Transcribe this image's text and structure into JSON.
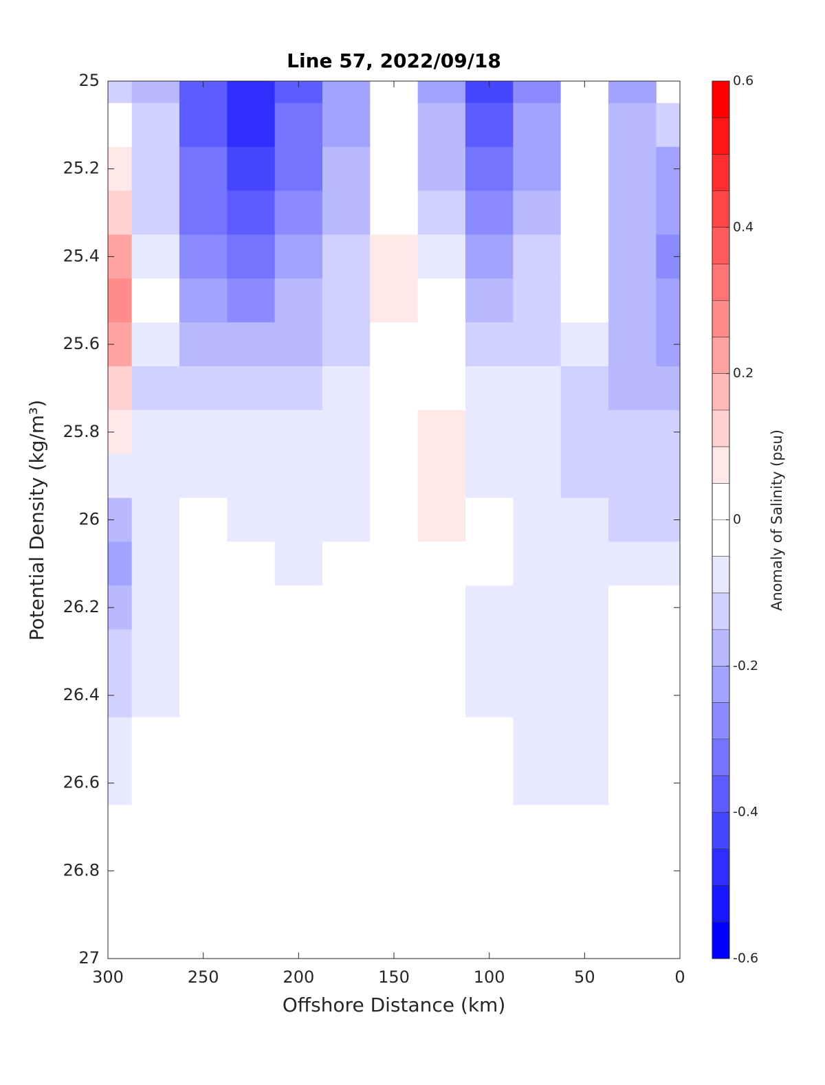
{
  "chart_data": {
    "type": "contour",
    "title": "Line 57, 2022/09/18",
    "xlabel": "Offshore Distance (km)",
    "ylabel": "Potential Density (kg/m³)",
    "colorbar_label": "Anomaly of Salinity (psu)",
    "xlim": [
      300,
      0
    ],
    "xticks": [
      300,
      250,
      200,
      150,
      100,
      50,
      0
    ],
    "ylim": [
      25,
      27
    ],
    "yticks": [
      25,
      25.2,
      25.4,
      25.6,
      25.8,
      26,
      26.2,
      26.4,
      26.6,
      26.8,
      27
    ],
    "clim": [
      -0.6,
      0.6
    ],
    "cticks": [
      -0.6,
      -0.4,
      -0.2,
      0,
      0.2,
      0.4,
      0.6
    ],
    "level_step": 0.05,
    "colors": {
      "low": "#0000ff",
      "mid": "#ffffff",
      "high": "#ff0000"
    },
    "x": [
      300,
      275,
      250,
      225,
      200,
      175,
      150,
      125,
      100,
      75,
      50,
      25,
      0
    ],
    "y": [
      25,
      25.1,
      25.2,
      25.3,
      25.4,
      25.5,
      25.6,
      25.7,
      25.8,
      25.9,
      26,
      26.1,
      26.2,
      26.3,
      26.4,
      26.5,
      26.6,
      26.7,
      26.8,
      26.9,
      27
    ],
    "z": [
      [
        -0.13,
        -0.18,
        -0.38,
        -0.48,
        -0.38,
        -0.23,
        0,
        -0.23,
        -0.43,
        -0.28,
        0,
        -0.23,
        null
      ],
      [
        0,
        -0.13,
        -0.38,
        -0.48,
        -0.33,
        -0.23,
        0,
        -0.18,
        -0.38,
        -0.23,
        0,
        -0.18,
        -0.13
      ],
      [
        0.08,
        -0.13,
        -0.33,
        -0.43,
        -0.33,
        -0.18,
        0,
        -0.18,
        -0.33,
        -0.23,
        0,
        -0.18,
        -0.23
      ],
      [
        0.13,
        -0.13,
        -0.33,
        -0.38,
        -0.28,
        -0.18,
        0.03,
        -0.13,
        -0.28,
        -0.18,
        0,
        -0.18,
        -0.23
      ],
      [
        0.23,
        -0.08,
        -0.28,
        -0.33,
        -0.23,
        -0.13,
        0.08,
        -0.08,
        -0.23,
        -0.13,
        0,
        -0.18,
        -0.28
      ],
      [
        0.28,
        0,
        -0.23,
        -0.28,
        -0.18,
        -0.13,
        0.08,
        0,
        -0.18,
        -0.13,
        0,
        -0.18,
        -0.23
      ],
      [
        0.23,
        -0.08,
        -0.18,
        -0.18,
        -0.18,
        -0.13,
        0.03,
        0,
        -0.13,
        -0.13,
        -0.08,
        -0.18,
        -0.23
      ],
      [
        0.13,
        -0.13,
        -0.13,
        -0.13,
        -0.13,
        -0.08,
        0,
        0.03,
        -0.08,
        -0.08,
        -0.13,
        -0.18,
        -0.18
      ],
      [
        0.08,
        -0.08,
        -0.08,
        -0.08,
        -0.08,
        -0.08,
        0,
        0.08,
        -0.08,
        -0.08,
        -0.13,
        -0.13,
        -0.13
      ],
      [
        -0.08,
        -0.08,
        -0.08,
        -0.08,
        -0.08,
        -0.08,
        0,
        0.08,
        -0.08,
        -0.08,
        -0.13,
        -0.13,
        -0.13
      ],
      [
        -0.18,
        -0.08,
        0,
        -0.08,
        -0.08,
        -0.08,
        0,
        0.08,
        0,
        -0.08,
        -0.08,
        -0.13,
        -0.13
      ],
      [
        -0.23,
        -0.08,
        0,
        0,
        -0.08,
        0,
        0,
        0,
        0,
        -0.08,
        -0.08,
        -0.08,
        -0.08
      ],
      [
        -0.18,
        -0.08,
        0,
        0,
        0,
        0,
        0,
        0,
        -0.08,
        -0.08,
        -0.08,
        0,
        0
      ],
      [
        -0.13,
        -0.08,
        0,
        0,
        0,
        0,
        0,
        0,
        -0.08,
        -0.08,
        -0.08,
        0,
        0
      ],
      [
        -0.13,
        -0.08,
        0.03,
        0,
        0,
        0,
        0,
        0,
        -0.08,
        -0.08,
        -0.08,
        0,
        0
      ],
      [
        -0.08,
        0,
        0,
        0,
        0,
        0,
        0,
        0,
        0,
        -0.08,
        -0.08,
        0,
        0
      ],
      [
        -0.08,
        0,
        0,
        0,
        0,
        0,
        0,
        0,
        0,
        -0.08,
        -0.08,
        0,
        0
      ],
      [
        0,
        0,
        0,
        0,
        0,
        0,
        0,
        0,
        0,
        0,
        0,
        0,
        0
      ],
      [
        0,
        0,
        0,
        0,
        0,
        0,
        0,
        0,
        0,
        0,
        0,
        0,
        0
      ],
      [
        0,
        0,
        0,
        0,
        0,
        0,
        0,
        0,
        0,
        0,
        0,
        0,
        0
      ],
      [
        0,
        0,
        0,
        0,
        0,
        0,
        0,
        0,
        0,
        0,
        0,
        0,
        0
      ]
    ]
  }
}
